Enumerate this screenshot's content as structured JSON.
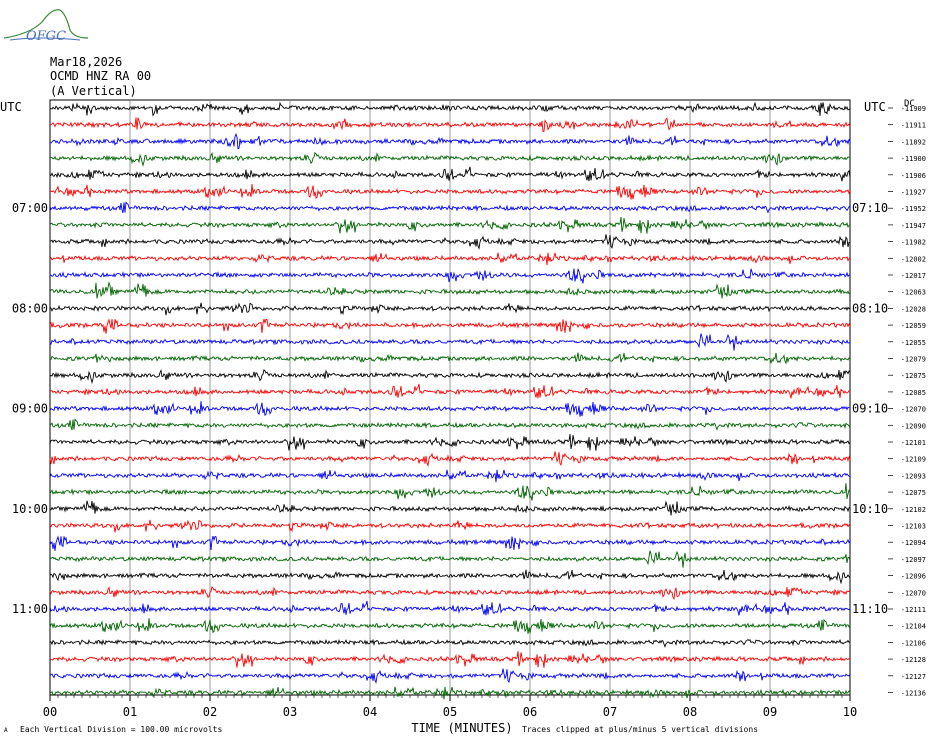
{
  "header": {
    "logo_text": "OFGC",
    "date": "Mar18,2026",
    "station": "OCMD HNZ RA 00",
    "component": "(A Vertical)",
    "left_utc": "UTC",
    "right_utc": "UTC",
    "right_unit": "DC"
  },
  "footer": {
    "scale_note": "Each Vertical Division =  100.00 microvolts",
    "clip_note": "Traces clipped at plus/minus 5 vertical divisions",
    "xlabel": "TIME (MINUTES)",
    "corner_mark": "A"
  },
  "chart_data": {
    "type": "line",
    "title": "",
    "xlabel": "TIME (MINUTES)",
    "ylabel": "",
    "xlim": [
      0,
      10
    ],
    "x_ticks": [
      "00",
      "01",
      "02",
      "03",
      "04",
      "05",
      "06",
      "07",
      "08",
      "09",
      "10"
    ],
    "grid": true,
    "row_colors": [
      "#000000",
      "#ff0000",
      "#0000ff",
      "#006400"
    ],
    "left_time_labels": [
      {
        "row": 6,
        "label": "07:00"
      },
      {
        "row": 12,
        "label": "08:00"
      },
      {
        "row": 18,
        "label": "09:00"
      },
      {
        "row": 24,
        "label": "10:00"
      },
      {
        "row": 30,
        "label": "11:00"
      }
    ],
    "right_time_labels": [
      {
        "row": 6,
        "label": "07:10"
      },
      {
        "row": 12,
        "label": "08:10"
      },
      {
        "row": 18,
        "label": "09:10"
      },
      {
        "row": 24,
        "label": "10:10"
      },
      {
        "row": 30,
        "label": "11:10"
      }
    ],
    "dc_offsets": [
      "-11909",
      "-11911",
      "-11892",
      "-11900",
      "-11906",
      "-11927",
      "-11952",
      "-11947",
      "-11982",
      "-12002",
      "-12017",
      "-12063",
      "-12028",
      "-12059",
      "-12055",
      "-12079",
      "-12075",
      "-12085",
      "-12070",
      "-12090",
      "-12101",
      "-12109",
      "-12093",
      "-12075",
      "-12102",
      "-12103",
      "-12094",
      "-12097",
      "-12096",
      "-12070",
      "-12111",
      "-12104",
      "-12106",
      "-12128",
      "-12127",
      "-12136"
    ]
  }
}
